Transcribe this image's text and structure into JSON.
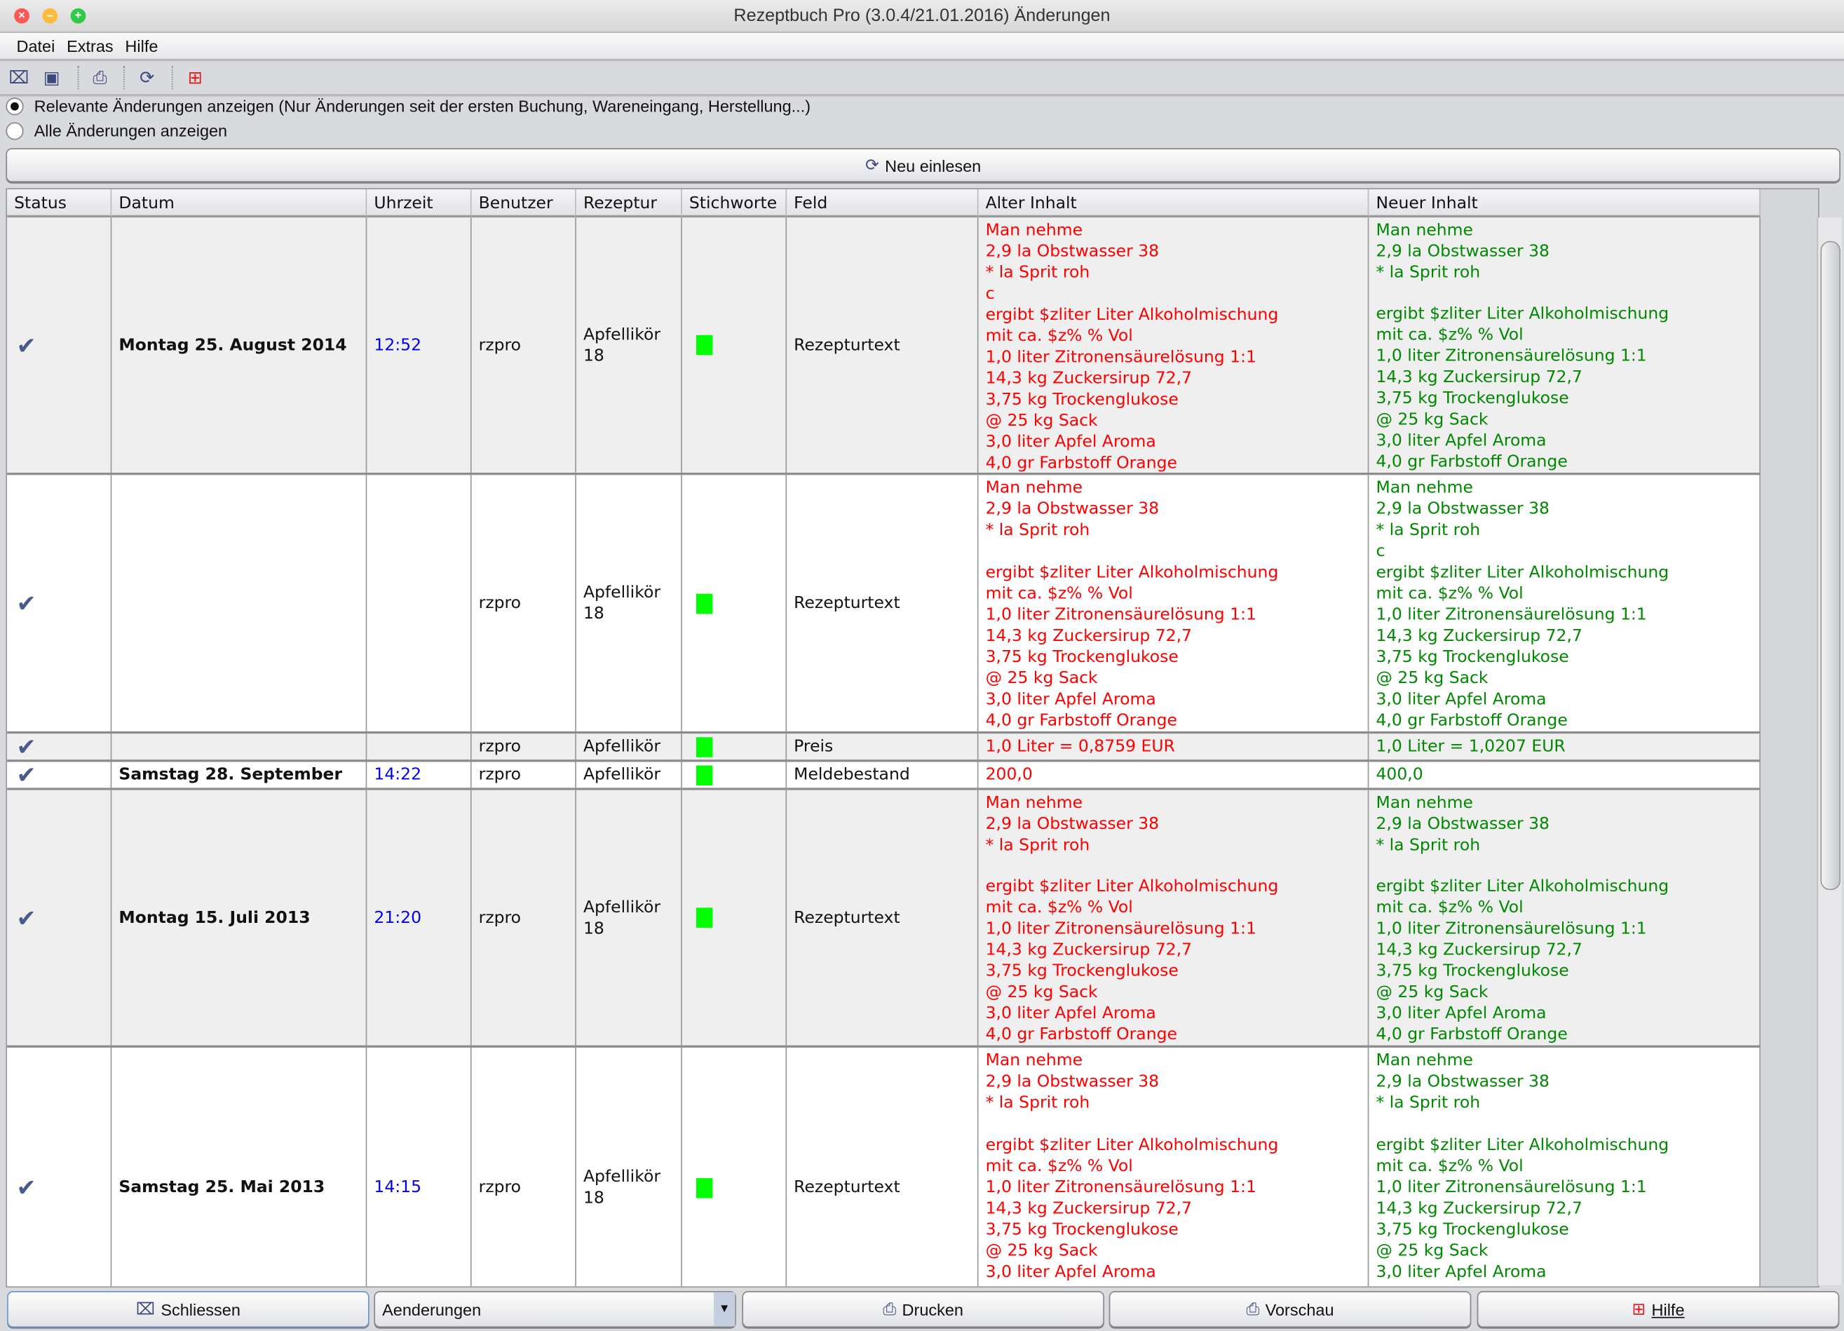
{
  "window": {
    "title": "Rezeptbuch Pro (3.0.4/21.01.2016) Änderungen"
  },
  "menu": [
    "Datei",
    "Extras",
    "Hilfe"
  ],
  "toolbar": {
    "icons": [
      "close-icon",
      "window-icon",
      "print-icon",
      "refresh-icon",
      "help-icon"
    ]
  },
  "filters": {
    "relevant": "Relevante Änderungen anzeigen (Nur Änderungen seit der ersten Buchung, Wareneingang, Herstellung...)",
    "all": "Alle Änderungen anzeigen",
    "selected": "relevant"
  },
  "reload_label": "Neu einlesen",
  "columns": [
    "Status",
    "Datum",
    "Uhrzeit",
    "Benutzer",
    "Rezeptur",
    "Stichworte",
    "Feld",
    "Alter Inhalt",
    "Neuer Inhalt"
  ],
  "colors": {
    "old": "#ff0000",
    "new": "#008800",
    "time": "#0000ee",
    "keyword": "#00ff00"
  },
  "rows": [
    {
      "datum": "Montag 25. August 2014",
      "uhrzeit": "12:52",
      "benutzer": "rzpro",
      "rezeptur": "Apfellikör 18",
      "feld": "Rezepturtext",
      "alt": [
        "Man nehme",
        "2,9 la Obstwasser 38",
        "* la Sprit roh",
        "c",
        "ergibt $zliter Liter Alkoholmischung",
        "mit ca. $z% % Vol",
        "1,0 liter Zitronensäurelösung 1:1",
        "14,3 kg Zuckersirup 72,7",
        "3,75 kg Trockenglukose",
        "@ 25 kg Sack",
        "3,0 liter Apfel Aroma",
        "4,0 gr Farbstoff Orange"
      ],
      "neu": [
        "Man nehme",
        "2,9 la Obstwasser 38",
        "* la Sprit roh",
        "",
        "ergibt $zliter Liter Alkoholmischung",
        "mit ca. $z% % Vol",
        "1,0 liter Zitronensäurelösung 1:1",
        "14,3 kg Zuckersirup 72,7",
        "3,75 kg Trockenglukose",
        "@ 25 kg Sack",
        "3,0 liter Apfel Aroma",
        "4,0 gr Farbstoff Orange"
      ]
    },
    {
      "datum": "",
      "uhrzeit": "",
      "benutzer": "rzpro",
      "rezeptur": "Apfellikör 18",
      "feld": "Rezepturtext",
      "alt": [
        "Man nehme",
        "2,9 la Obstwasser 38",
        "* la Sprit roh",
        "",
        "ergibt $zliter Liter Alkoholmischung",
        "mit ca. $z% % Vol",
        "1,0 liter Zitronensäurelösung 1:1",
        "14,3 kg Zuckersirup 72,7",
        "3,75 kg Trockenglukose",
        "@ 25 kg Sack",
        "3,0 liter Apfel Aroma",
        "4,0 gr Farbstoff Orange"
      ],
      "neu": [
        "Man nehme",
        "2,9 la Obstwasser 38",
        "* la Sprit roh",
        "c",
        "ergibt $zliter Liter Alkoholmischung",
        "mit ca. $z% % Vol",
        "1,0 liter Zitronensäurelösung 1:1",
        "14,3 kg Zuckersirup 72,7",
        "3,75 kg Trockenglukose",
        "@ 25 kg Sack",
        "3,0 liter Apfel Aroma",
        "4,0 gr Farbstoff Orange"
      ]
    },
    {
      "datum": "",
      "uhrzeit": "",
      "benutzer": "rzpro",
      "rezeptur": "Apfellikör",
      "feld": "Preis",
      "alt": [
        "1,0 Liter = 0,8759 EUR"
      ],
      "neu": [
        "1,0 Liter = 1,0207 EUR"
      ]
    },
    {
      "datum": "Samstag 28. September",
      "uhrzeit": "14:22",
      "benutzer": "rzpro",
      "rezeptur": "Apfellikör",
      "feld": "Meldebestand",
      "alt": [
        "200,0"
      ],
      "neu": [
        "400,0"
      ]
    },
    {
      "datum": "Montag 15. Juli 2013",
      "uhrzeit": "21:20",
      "benutzer": "rzpro",
      "rezeptur": "Apfellikör 18",
      "feld": "Rezepturtext",
      "alt": [
        "Man nehme",
        "2,9 la Obstwasser 38",
        "* la Sprit roh",
        "",
        "ergibt $zliter Liter Alkoholmischung",
        "mit ca. $z% % Vol",
        "1,0 liter Zitronensäurelösung 1:1",
        "14,3 kg Zuckersirup 72,7",
        "3,75 kg Trockenglukose",
        "@ 25 kg Sack",
        "3,0 liter Apfel Aroma",
        "4,0 gr Farbstoff Orange"
      ],
      "neu": [
        "Man nehme",
        "2,9 la Obstwasser 38",
        "* la Sprit roh",
        "",
        "ergibt $zliter Liter Alkoholmischung",
        "mit ca. $z% % Vol",
        "1,0 liter Zitronensäurelösung 1:1",
        "14,3 kg Zuckersirup 72,7",
        "3,75 kg Trockenglukose",
        "@ 25 kg Sack",
        "3,0 liter Apfel Aroma",
        "4,0 gr Farbstoff Orange"
      ]
    },
    {
      "datum": "Samstag 25. Mai 2013",
      "uhrzeit": "14:15",
      "benutzer": "rzpro",
      "rezeptur": "Apfellikör 18",
      "feld": "Rezepturtext",
      "alt": [
        "Man nehme",
        "2,9 la Obstwasser 38",
        "* la Sprit roh",
        "",
        "ergibt $zliter Liter Alkoholmischung",
        "mit ca. $z% % Vol",
        "1,0 liter Zitronensäurelösung 1:1",
        "14,3 kg Zuckersirup 72,7",
        "3,75 kg Trockenglukose",
        "@ 25 kg Sack",
        "3,0 liter Apfel Aroma"
      ],
      "neu": [
        "Man nehme",
        "2,9 la Obstwasser 38",
        "* la Sprit roh",
        "",
        "ergibt $zliter Liter Alkoholmischung",
        "mit ca. $z% % Vol",
        "1,0 liter Zitronensäurelösung 1:1",
        "14,3 kg Zuckersirup 72,7",
        "3,75 kg Trockenglukose",
        "@ 25 kg Sack",
        "3,0 liter Apfel Aroma"
      ]
    }
  ],
  "footer": {
    "close": "Schliessen",
    "report_select": "Aenderungen",
    "print": "Drucken",
    "preview": "Vorschau",
    "help": "Hilfe"
  }
}
